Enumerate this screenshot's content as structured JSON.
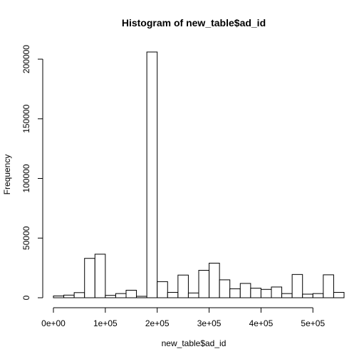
{
  "chart_data": {
    "type": "bar",
    "title": "Histogram of new_table$ad_id",
    "xlabel": "new_table$ad_id",
    "ylabel": "Frequency",
    "bin_width": 20000,
    "bin_start": 0,
    "values": [
      1500,
      2200,
      4300,
      33000,
      36500,
      2000,
      3500,
      6300,
      1200,
      206000,
      13500,
      4500,
      19000,
      4000,
      23000,
      29000,
      15000,
      7500,
      12000,
      8000,
      7000,
      9000,
      3500,
      19500,
      3000,
      3500,
      19200,
      4500
    ],
    "x_ticks": [
      {
        "value": 0,
        "label": "0e+00"
      },
      {
        "value": 100000,
        "label": "1e+05"
      },
      {
        "value": 200000,
        "label": "2e+05"
      },
      {
        "value": 300000,
        "label": "3e+05"
      },
      {
        "value": 400000,
        "label": "4e+05"
      },
      {
        "value": 500000,
        "label": "5e+05"
      }
    ],
    "y_ticks": [
      {
        "value": 0,
        "label": "0"
      },
      {
        "value": 50000,
        "label": "50000"
      },
      {
        "value": 100000,
        "label": "100000"
      },
      {
        "value": 150000,
        "label": "150000"
      },
      {
        "value": 200000,
        "label": "200000"
      }
    ],
    "xlim": [
      0,
      560000
    ],
    "ylim": [
      0,
      206000
    ],
    "grid": false,
    "legend": "none"
  }
}
